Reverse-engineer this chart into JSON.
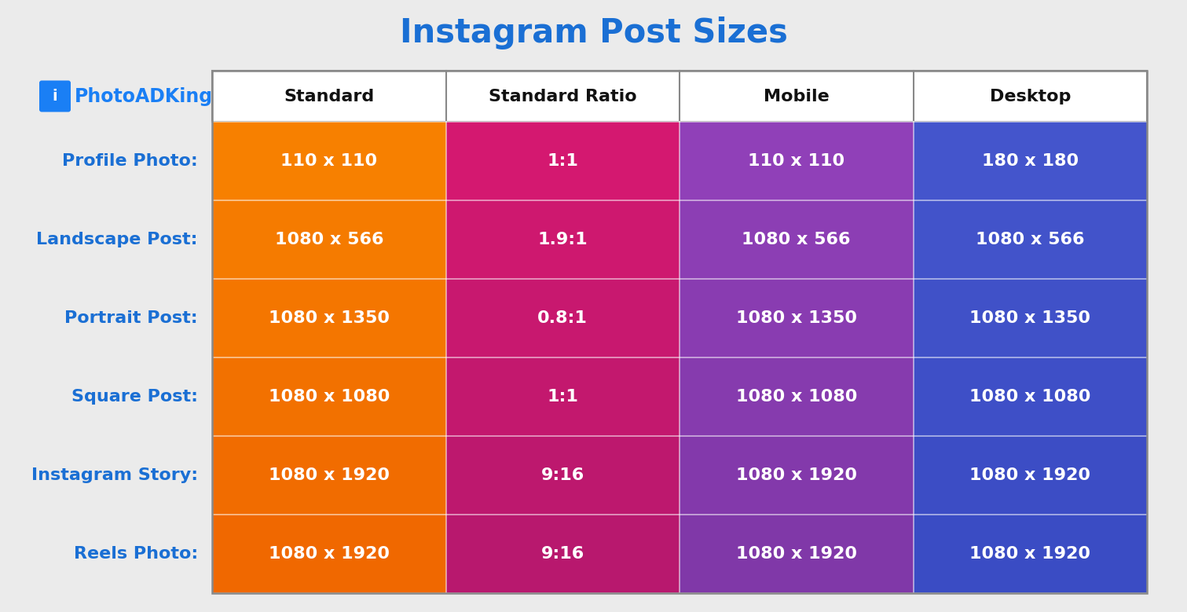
{
  "title": "Instagram Post Sizes",
  "title_color": "#1a6fd4",
  "background_color": "#ebebeb",
  "logo_text": "PhotoADKing",
  "logo_color": "#1a7ff5",
  "row_labels": [
    "Profile Photo:",
    "Landscape Post:",
    "Portrait Post:",
    "Square Post:",
    "Instagram Story:",
    "Reels Photo:"
  ],
  "row_label_color": "#1a6fd4",
  "col_headers": [
    "Standard",
    "Standard Ratio",
    "Mobile",
    "Desktop"
  ],
  "col_header_color": "#111111",
  "col_colors": [
    "#F57C00",
    "#C2185B",
    "#8B3EA8",
    "#4355C7"
  ],
  "table_data": [
    [
      "110 x 110",
      "1:1",
      "110 x 110",
      "180 x 180"
    ],
    [
      "1080 x 566",
      "1.9:1",
      "1080 x 566",
      "1080 x 566"
    ],
    [
      "1080 x 1350",
      "0.8:1",
      "1080 x 1350",
      "1080 x 1350"
    ],
    [
      "1080 x 1080",
      "1:1",
      "1080 x 1080",
      "1080 x 1080"
    ],
    [
      "1080 x 1920",
      "9:16",
      "1080 x 1920",
      "1080 x 1920"
    ],
    [
      "1080 x 1920",
      "9:16",
      "1080 x 1920",
      "1080 x 1920"
    ]
  ],
  "cell_text_color": "#ffffff",
  "header_bg_color": "#ffffff",
  "table_border_color": "#888888",
  "cell_fontsize": 16,
  "header_fontsize": 16,
  "row_label_fontsize": 16,
  "title_fontsize": 30,
  "logo_fontsize": 17
}
